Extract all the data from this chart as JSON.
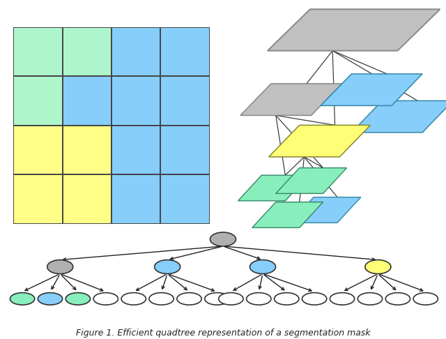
{
  "fig_width": 6.4,
  "fig_height": 4.86,
  "bg_color": "#ffffff",
  "grid_colors": [
    [
      "#aef5cc",
      "#aef5cc",
      "#87CEFA",
      "#87CEFA"
    ],
    [
      "#aef5cc",
      "#87CEFA",
      "#87CEFA",
      "#87CEFA"
    ],
    [
      "#FFFF88",
      "#FFFF88",
      "#87CEFA",
      "#87CEFA"
    ],
    [
      "#FFFF88",
      "#FFFF88",
      "#87CEFA",
      "#87CEFA"
    ]
  ],
  "caption": "Figure 1. Efficient quadtree representation of a segmentation mask",
  "caption_fontsize": 9,
  "color_gray": "#b0b0b0",
  "color_blue": "#87CEFA",
  "color_yellow": "#FFFF77",
  "color_green": "#88EEBB",
  "color_white": "#ffffff",
  "edge_color": "#444444"
}
